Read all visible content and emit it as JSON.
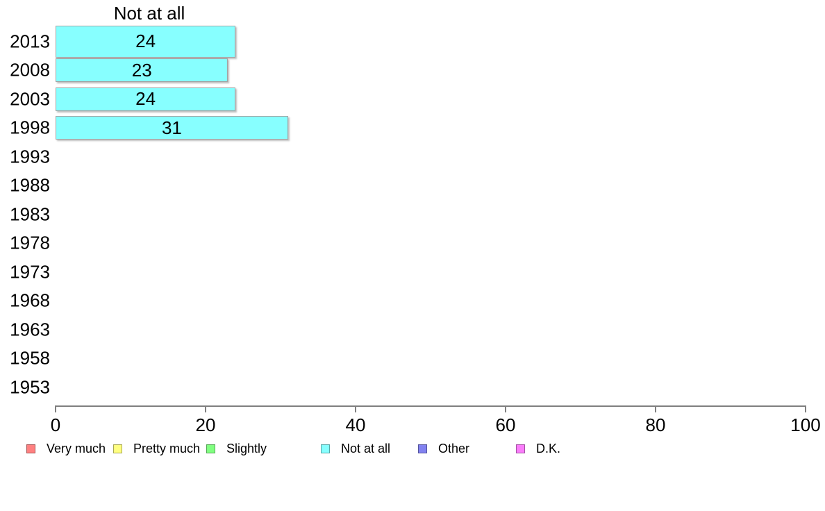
{
  "chart_data": {
    "type": "bar",
    "orientation": "horizontal",
    "title": "Not at all",
    "categories": [
      "2013",
      "2008",
      "2003",
      "1998",
      "1993",
      "1988",
      "1983",
      "1978",
      "1973",
      "1968",
      "1963",
      "1958",
      "1953"
    ],
    "values": [
      24,
      23,
      24,
      31,
      null,
      null,
      null,
      null,
      null,
      null,
      null,
      null,
      null
    ],
    "bar_color": "#87ffff",
    "bar_border_color": "#a3a3a3",
    "xlabel": "",
    "ylabel": "",
    "xlim": [
      0,
      100
    ],
    "x_ticks": [
      0,
      20,
      40,
      60,
      80,
      100
    ],
    "grid": false,
    "axis_color": "#7f7f7f",
    "legend_position": "bottom",
    "legend": [
      {
        "label": "Very much",
        "color": "#ff8080"
      },
      {
        "label": "Pretty much",
        "color": "#ffff80"
      },
      {
        "label": "Slightly",
        "color": "#80ff80"
      },
      {
        "label": "Not at all",
        "color": "#87ffff"
      },
      {
        "label": "Other",
        "color": "#8282f0"
      },
      {
        "label": "D.K.",
        "color": "#fa7dfa"
      }
    ]
  }
}
